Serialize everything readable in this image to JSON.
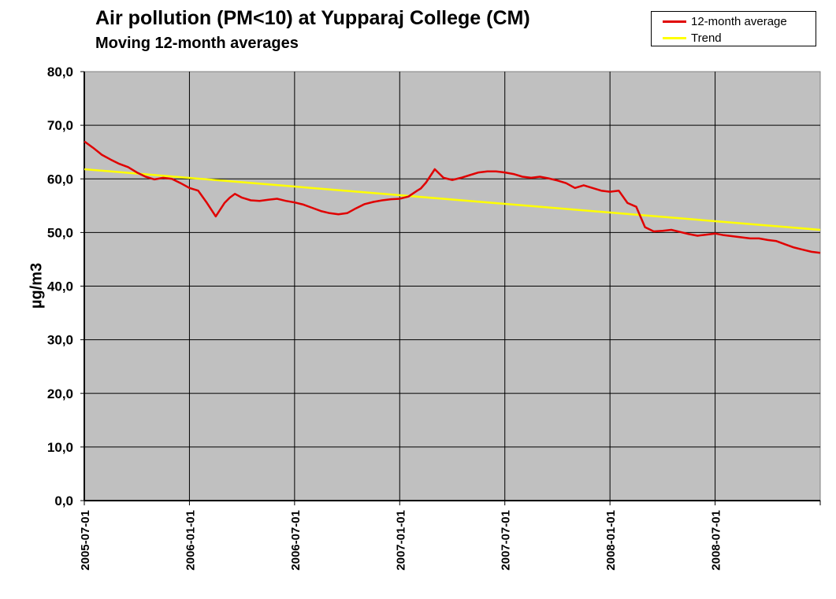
{
  "chart_data": {
    "type": "line",
    "title": "Air pollution (PM<10) at Yupparaj College (CM)",
    "subtitle": "Moving 12-month averages",
    "ylabel": "µg/m3",
    "xlabel": "",
    "ylim": [
      0,
      80
    ],
    "y_ticks": [
      "0,0",
      "10,0",
      "20,0",
      "30,0",
      "40,0",
      "50,0",
      "60,0",
      "70,0",
      "80,0"
    ],
    "x_tick_labels": [
      "2005-07-01",
      "2006-01-01",
      "2006-07-01",
      "2007-01-01",
      "2007-07-01",
      "2008-01-01",
      "2008-07-01"
    ],
    "x_range_months": [
      0,
      42
    ],
    "grid": true,
    "legend_position": "top-right",
    "series": [
      {
        "name": "12-month average",
        "color": "#e00000",
        "x": [
          0,
          0.5,
          1,
          1.5,
          2,
          2.5,
          3,
          3.5,
          4,
          4.5,
          5,
          5.5,
          6,
          6.5,
          7,
          7.5,
          8,
          8.3,
          8.6,
          9,
          9.5,
          10,
          10.5,
          11,
          11.5,
          12,
          12.5,
          13,
          13.5,
          14,
          14.5,
          15,
          15.5,
          16,
          16.5,
          17,
          17.5,
          18,
          18.5,
          19,
          19.2,
          19.5,
          20,
          20.5,
          21,
          21.5,
          22,
          22.5,
          23,
          23.5,
          24,
          24.5,
          25,
          25.5,
          26,
          26.5,
          27,
          27.5,
          28,
          28.5,
          29,
          29.5,
          30,
          30.5,
          31,
          31.5,
          32,
          32.5,
          33,
          33.5,
          34,
          34.5,
          35,
          35.5,
          36,
          36.5,
          37,
          37.5,
          38,
          38.5,
          39,
          39.5,
          40,
          40.5,
          41,
          41.5,
          42
        ],
        "values": [
          67.0,
          65.8,
          64.5,
          63.6,
          62.8,
          62.2,
          61.2,
          60.4,
          59.9,
          60.2,
          60.0,
          59.2,
          58.3,
          57.8,
          55.5,
          53.0,
          55.5,
          56.5,
          57.2,
          56.5,
          56.0,
          55.9,
          56.1,
          56.3,
          55.9,
          55.6,
          55.2,
          54.6,
          54.0,
          53.6,
          53.4,
          53.6,
          54.5,
          55.3,
          55.7,
          56.0,
          56.2,
          56.3,
          56.7,
          57.8,
          58.2,
          59.3,
          61.8,
          60.2,
          59.8,
          60.2,
          60.7,
          61.2,
          61.4,
          61.4,
          61.2,
          60.9,
          60.4,
          60.2,
          60.4,
          60.1,
          59.7,
          59.2,
          58.3,
          58.8,
          58.3,
          57.8,
          57.6,
          57.8,
          55.5,
          54.8,
          51.0,
          50.2,
          50.3,
          50.5,
          50.1,
          49.7,
          49.4,
          49.6,
          49.8,
          49.5,
          49.3,
          49.1,
          48.9,
          48.9,
          48.6,
          48.4,
          47.8,
          47.2,
          46.8,
          46.4,
          46.2
        ]
      },
      {
        "name": "Trend",
        "color": "#ffff00",
        "x": [
          0,
          42
        ],
        "values": [
          61.8,
          50.5
        ]
      }
    ]
  }
}
